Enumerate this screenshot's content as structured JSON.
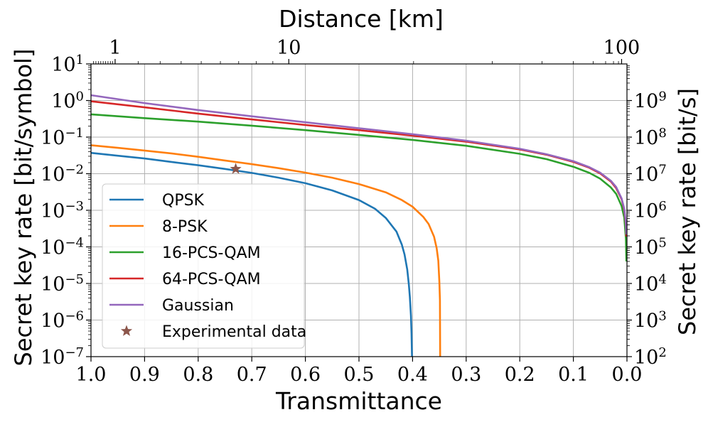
{
  "chart_data": {
    "type": "line",
    "xlabel_bottom": "Transmittance",
    "xlabel_top": "Distance [km]",
    "ylabel_left": "Secret key rate [bit/symbol]",
    "ylabel_right": "Secret key rate [bit/s]",
    "xlim": [
      1.0,
      0.0
    ],
    "ylim_left": [
      1e-07,
      10
    ],
    "yscale": "log",
    "grid": true,
    "x_ticks": [
      1.0,
      0.9,
      0.8,
      0.7,
      0.6,
      0.5,
      0.4,
      0.3,
      0.2,
      0.1,
      0.0
    ],
    "x_tick_labels": [
      "1.0",
      "0.9",
      "0.8",
      "0.7",
      "0.6",
      "0.5",
      "0.4",
      "0.3",
      "0.2",
      "0.1",
      "0.0"
    ],
    "y_left_ticks": [
      {
        "value": 10,
        "base": "10",
        "exp": "1"
      },
      {
        "value": 1,
        "base": "10",
        "exp": "0"
      },
      {
        "value": 0.1,
        "base": "10",
        "exp": "−1"
      },
      {
        "value": 0.01,
        "base": "10",
        "exp": "−2"
      },
      {
        "value": 0.001,
        "base": "10",
        "exp": "−3"
      },
      {
        "value": 0.0001,
        "base": "10",
        "exp": "−4"
      },
      {
        "value": 1e-05,
        "base": "10",
        "exp": "−5"
      },
      {
        "value": 1e-06,
        "base": "10",
        "exp": "−6"
      },
      {
        "value": 1e-07,
        "base": "10",
        "exp": "−7"
      }
    ],
    "symbol_rate": 1000000000,
    "y_right_ticks": [
      {
        "value": 1000000000.0,
        "base": "10",
        "exp": "9"
      },
      {
        "value": 100000000.0,
        "base": "10",
        "exp": "8"
      },
      {
        "value": 10000000.0,
        "base": "10",
        "exp": "7"
      },
      {
        "value": 1000000.0,
        "base": "10",
        "exp": "6"
      },
      {
        "value": 100000.0,
        "base": "10",
        "exp": "5"
      },
      {
        "value": 10000.0,
        "base": "10",
        "exp": "4"
      },
      {
        "value": 1000.0,
        "base": "10",
        "exp": "3"
      },
      {
        "value": 100.0,
        "base": "10",
        "exp": "2"
      }
    ],
    "distance_ticks": [
      {
        "km": 1,
        "label": "1"
      },
      {
        "km": 10,
        "label": "10"
      },
      {
        "km": 100,
        "label": "100"
      }
    ],
    "loss_db_per_km": 0.2,
    "legend_position": "lower-left",
    "series": [
      {
        "name": "QPSK",
        "color": "#1f77b4",
        "x": [
          1.0,
          0.95,
          0.9,
          0.85,
          0.8,
          0.75,
          0.7,
          0.65,
          0.6,
          0.55,
          0.5,
          0.47,
          0.45,
          0.43,
          0.42,
          0.415,
          0.41,
          0.407,
          0.405,
          0.403,
          0.402,
          0.401
        ],
        "y": [
          0.037,
          0.031,
          0.026,
          0.021,
          0.017,
          0.0135,
          0.0105,
          0.0078,
          0.0055,
          0.0035,
          0.0019,
          0.0011,
          0.00062,
          0.00026,
          0.000115,
          6.2e-05,
          2.4e-05,
          9.6e-06,
          4.2e-06,
          1.3e-06,
          4.5e-07,
          1e-07
        ]
      },
      {
        "name": "8-PSK",
        "color": "#ff7f0e",
        "x": [
          1.0,
          0.95,
          0.9,
          0.85,
          0.8,
          0.75,
          0.7,
          0.65,
          0.6,
          0.55,
          0.5,
          0.45,
          0.42,
          0.4,
          0.38,
          0.37,
          0.36,
          0.355,
          0.352,
          0.35,
          0.349,
          0.3485
        ],
        "y": [
          0.06,
          0.051,
          0.043,
          0.036,
          0.029,
          0.023,
          0.0182,
          0.0142,
          0.0107,
          0.0078,
          0.0052,
          0.0031,
          0.0019,
          0.00125,
          0.00066,
          0.00042,
          0.00019,
          9.2e-05,
          4.2e-05,
          1.1e-05,
          3.5e-06,
          1e-07
        ]
      },
      {
        "name": "16-PCS-QAM",
        "color": "#2ca02c",
        "x": [
          1.0,
          0.9,
          0.8,
          0.7,
          0.6,
          0.5,
          0.4,
          0.3,
          0.2,
          0.15,
          0.1,
          0.07,
          0.05,
          0.03,
          0.02,
          0.01,
          0.005,
          0.002,
          0.001
        ],
        "y": [
          0.42,
          0.33,
          0.265,
          0.205,
          0.155,
          0.115,
          0.084,
          0.058,
          0.035,
          0.025,
          0.0155,
          0.0105,
          0.0073,
          0.0042,
          0.0028,
          0.0013,
          0.00063,
          0.00017,
          4e-05
        ]
      },
      {
        "name": "64-PCS-QAM",
        "color": "#d62728",
        "x": [
          1.0,
          0.9,
          0.8,
          0.7,
          0.6,
          0.5,
          0.4,
          0.3,
          0.2,
          0.15,
          0.1,
          0.07,
          0.05,
          0.03,
          0.02,
          0.01,
          0.005,
          0.002,
          0.001
        ],
        "y": [
          0.95,
          0.65,
          0.44,
          0.305,
          0.215,
          0.155,
          0.11,
          0.075,
          0.046,
          0.033,
          0.021,
          0.0145,
          0.0102,
          0.0061,
          0.004,
          0.002,
          0.001,
          0.0004,
          0.00019
        ]
      },
      {
        "name": "Gaussian",
        "color": "#9467bd",
        "x": [
          1.0,
          0.9,
          0.8,
          0.7,
          0.6,
          0.5,
          0.4,
          0.3,
          0.2,
          0.15,
          0.1,
          0.07,
          0.05,
          0.03,
          0.02,
          0.01,
          0.005,
          0.002,
          0.001
        ],
        "y": [
          1.4,
          0.85,
          0.55,
          0.37,
          0.255,
          0.175,
          0.12,
          0.08,
          0.048,
          0.034,
          0.022,
          0.015,
          0.0107,
          0.0064,
          0.0043,
          0.0021,
          0.0011,
          0.00045,
          0.00022
        ]
      }
    ],
    "experimental": {
      "name": "Experimental data",
      "color": "#8c564b",
      "x": 0.73,
      "y": 0.0135
    }
  }
}
